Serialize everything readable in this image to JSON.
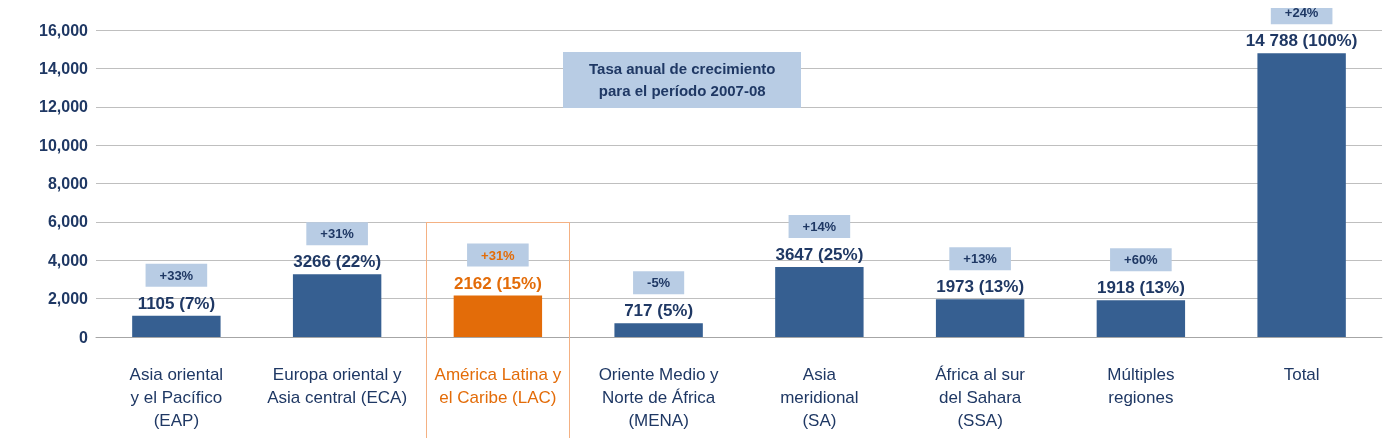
{
  "chart_data": {
    "type": "bar",
    "categories": [
      "Asia oriental\ny el Pacífico\n(EAP)",
      "Europa oriental y\nAsia central (ECA)",
      "América Latina y\nel Caribe (LAC)",
      "Oriente Medio y\nNorte de África\n(MENA)",
      "Asia\nmeridional\n(SA)",
      "África al sur\ndel Sahara\n(SSA)",
      "Múltiples\nregiones",
      "Total"
    ],
    "values": [
      1105,
      3266,
      2162,
      717,
      3647,
      1973,
      1918,
      14788
    ],
    "colors": [
      "#365f91",
      "#365f91",
      "#e36c09",
      "#365f91",
      "#365f91",
      "#365f91",
      "#365f91",
      "#365f91"
    ],
    "value_labels": [
      "1105 (7%)",
      "3266 (22%)",
      "2162 (15%)",
      "717 (5%)",
      "3647 (25%)",
      "1973 (13%)",
      "1918 (13%)",
      "14 788 (100%)"
    ],
    "annotations": [
      "+33%",
      "+31%",
      "+31%",
      "-5%",
      "+14%",
      "+13%",
      "+60%",
      "+24%",
      "Tasa anual de crecimiento\npara el período 2007-08"
    ],
    "ylim": [
      0,
      16000
    ],
    "yticks": [
      {
        "value": 0,
        "label": "0"
      },
      {
        "value": 2000,
        "label": "2,000"
      },
      {
        "value": 4000,
        "label": "4,000"
      },
      {
        "value": 6000,
        "label": "6,000"
      },
      {
        "value": 8000,
        "label": "8,000"
      },
      {
        "value": 10000,
        "label": "10,000"
      },
      {
        "value": 12000,
        "label": "12,000"
      },
      {
        "value": 14000,
        "label": "14,000"
      },
      {
        "value": 16000,
        "label": "16,000"
      }
    ],
    "grid": "y"
  }
}
